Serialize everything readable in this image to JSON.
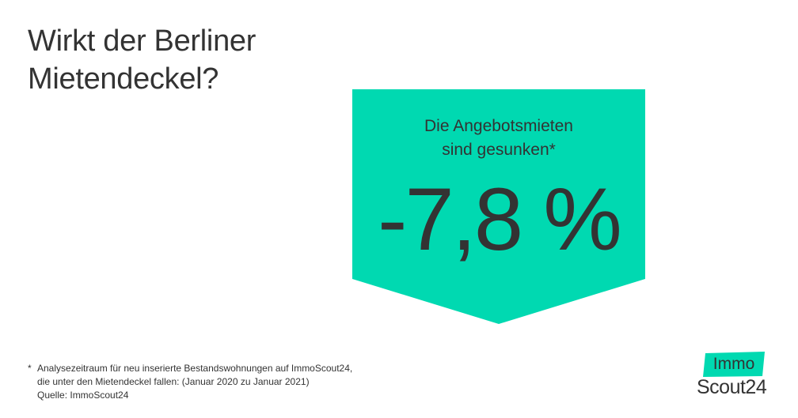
{
  "headline": {
    "line1": "Wirkt der Berliner",
    "line2": "Mietendeckel?"
  },
  "badge": {
    "subtitle_line1": "Die Angebotsmieten",
    "subtitle_line2": "sind gesunken*",
    "value": "-7,8 %",
    "color": "#00D9B1"
  },
  "footnote": {
    "marker": "*",
    "line1": "Analysezeitraum für neu inserierte Bestandswohnungen auf ImmoScout24,",
    "line2": "die unter den Mietendeckel fallen: (Januar 2020 zu Januar 2021)",
    "line3": "Quelle: ImmoScout24"
  },
  "logo": {
    "top": "Immo",
    "bottom": "Scout24",
    "color": "#00D9B1"
  }
}
